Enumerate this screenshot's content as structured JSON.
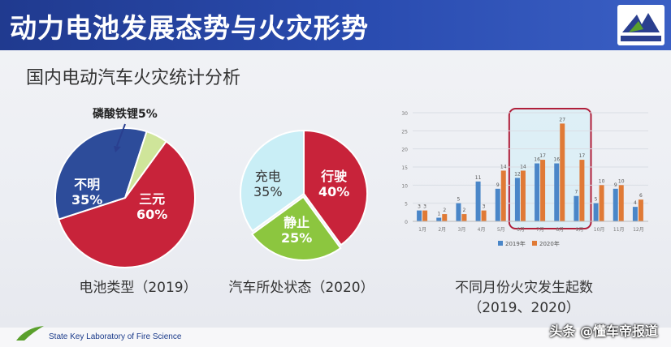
{
  "slide": {
    "title": "动力电池发展态势与火灾形势",
    "subtitle": "国内电动汽车火灾统计分析",
    "footer": "State Key Laboratory of Fire Science",
    "watermark": "头条 @懂车帝报道"
  },
  "chart_data": [
    {
      "type": "pie",
      "title": "电池类型（2019）",
      "slices": [
        {
          "label": "三元",
          "value_label": "60%",
          "value": 60,
          "color": "#c8233a"
        },
        {
          "label": "不明",
          "value_label": "35%",
          "value": 35,
          "color": "#2d4c9a"
        },
        {
          "label": "磷酸铁锂5%",
          "value_label": "",
          "value": 5,
          "color": "#cfe59a"
        }
      ]
    },
    {
      "type": "pie",
      "title": "汽车所处状态（2020）",
      "slices": [
        {
          "label": "行驶",
          "value_label": "40%",
          "value": 40,
          "color": "#c8233a"
        },
        {
          "label": "静止",
          "value_label": "25%",
          "value": 25,
          "color": "#8cc63f"
        },
        {
          "label": "充电",
          "value_label": "35%",
          "value": 35,
          "color": "#c9eef6"
        }
      ]
    },
    {
      "type": "bar",
      "title": "不同月份火灾发生起数",
      "subtitle": "（2019、2020）",
      "categories": [
        "1月",
        "2月",
        "3月",
        "4月",
        "5月",
        "6月",
        "7月",
        "8月",
        "9月",
        "10月",
        "11月",
        "12月"
      ],
      "series": [
        {
          "name": "2019年",
          "values": [
            3,
            1,
            5,
            11,
            9,
            12,
            16,
            16,
            7,
            5,
            9,
            4
          ],
          "color": "#4a86c8"
        },
        {
          "name": "2020年",
          "values": [
            3,
            2,
            2,
            3,
            14,
            14,
            17,
            27,
            17,
            10,
            10,
            6
          ],
          "color": "#e07a36"
        }
      ],
      "ylim": [
        0,
        30
      ],
      "yticks": [
        0,
        5,
        10,
        15,
        20,
        25,
        30
      ],
      "highlight_months": [
        "6月",
        "7月",
        "8月",
        "9月"
      ],
      "legend": "bottom"
    }
  ]
}
